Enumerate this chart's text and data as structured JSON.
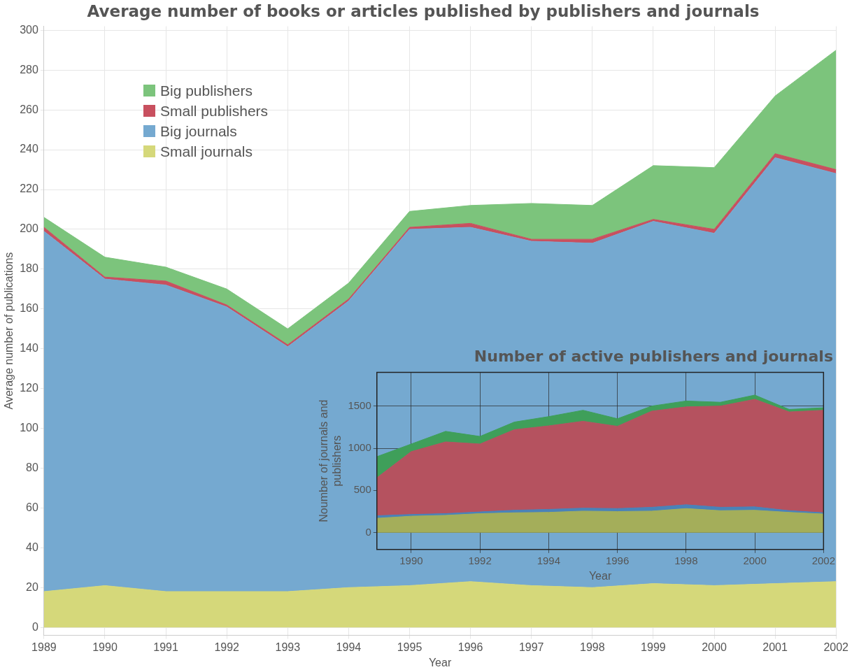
{
  "chart_data": [
    {
      "type": "area",
      "title": "Average number of books or articles published by publishers and journals",
      "xlabel": "Year",
      "ylabel": "Average number of publications",
      "categories": [
        "1989",
        "1990",
        "1991",
        "1992",
        "1993",
        "1994",
        "1995",
        "1996",
        "1997",
        "1998",
        "1999",
        "2000",
        "2001",
        "2002"
      ],
      "stacked": true,
      "ylim": [
        -4,
        302
      ],
      "yticks": [
        0,
        20,
        40,
        60,
        80,
        100,
        120,
        140,
        160,
        180,
        200,
        220,
        240,
        260,
        280,
        300
      ],
      "grid": true,
      "legend": "top left",
      "series": [
        {
          "name": "Small journals",
          "color": "#d5d87a",
          "values": [
            18,
            21,
            18,
            18,
            18,
            20,
            21,
            23,
            21,
            20,
            22,
            21,
            22,
            23
          ]
        },
        {
          "name": "Big journals",
          "color": "#75a9d0",
          "values": [
            181,
            154,
            154,
            143,
            123,
            144,
            179,
            178,
            173,
            173,
            182,
            177,
            214,
            205
          ]
        },
        {
          "name": "Small publishers",
          "color": "#c8505f",
          "values": [
            2,
            1,
            2,
            1,
            1,
            1,
            1,
            2,
            1,
            2,
            1,
            2,
            2,
            2
          ]
        },
        {
          "name": "Big publishers",
          "color": "#7cc47c",
          "values": [
            5,
            10,
            7,
            8,
            8,
            8,
            8,
            9,
            18,
            17,
            27,
            31,
            29,
            60
          ]
        }
      ]
    },
    {
      "type": "area",
      "title": "Number of active publishers and journals",
      "xlabel": "Year",
      "ylabel": "Noumber of journals and publishers",
      "categories": [
        null,
        "1990",
        null,
        "1992",
        null,
        "1994",
        null,
        "1996",
        null,
        "1998",
        null,
        "2000",
        null,
        "2002"
      ],
      "stacked": true,
      "ylim": [
        -200,
        1900
      ],
      "yticks": [
        0,
        500,
        1000,
        1500
      ],
      "grid": true,
      "series": [
        {
          "color": "#a4ae5a",
          "values": [
            170,
            195,
            205,
            225,
            235,
            240,
            255,
            250,
            255,
            285,
            260,
            265,
            240,
            220
          ]
        },
        {
          "color": "#4a82b8",
          "values": [
            30,
            20,
            20,
            20,
            30,
            35,
            35,
            35,
            45,
            45,
            40,
            40,
            20,
            15
          ]
        },
        {
          "color": "#b5525f",
          "values": [
            450,
            745,
            850,
            805,
            955,
            990,
            1030,
            975,
            1140,
            1160,
            1200,
            1275,
            1170,
            1215
          ]
        },
        {
          "color": "#3f9f5a",
          "values": [
            250,
            90,
            125,
            90,
            90,
            110,
            130,
            90,
            60,
            70,
            45,
            50,
            30,
            30
          ]
        }
      ]
    }
  ]
}
